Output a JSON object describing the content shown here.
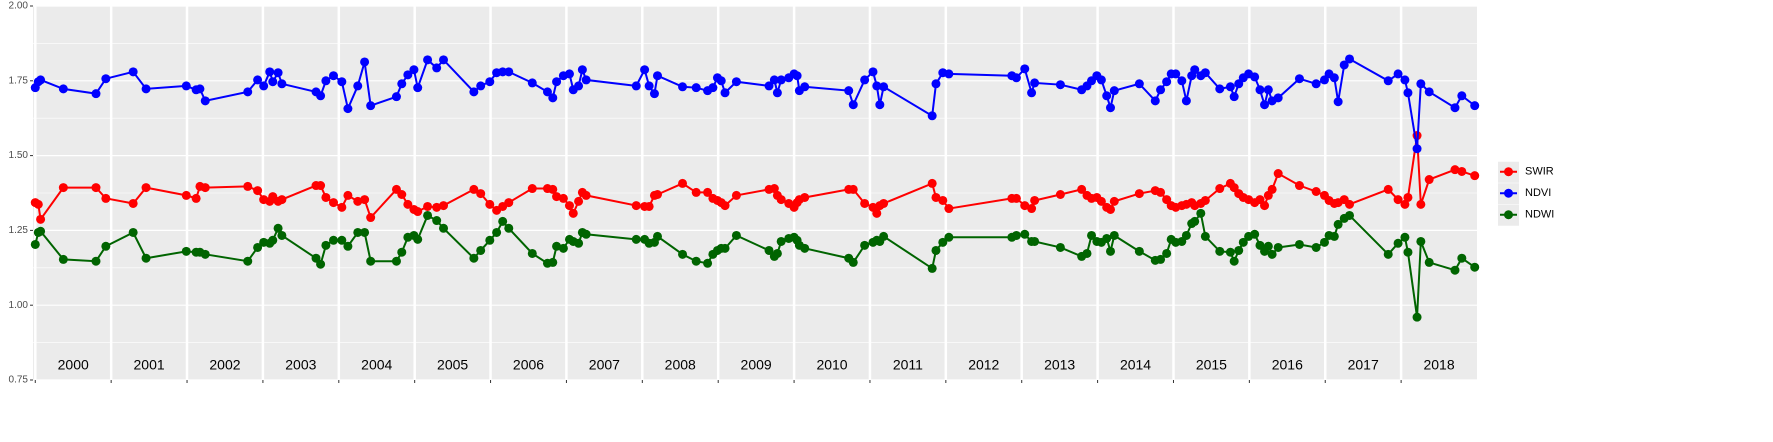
{
  "chart_data": {
    "type": "line",
    "x": [
      2000,
      2000.04,
      2000.07,
      2000.37,
      2000.8,
      2000.93,
      2001.29,
      2001.46,
      2001.99,
      2002.12,
      2002.17,
      2002.24,
      2002.8,
      2002.93,
      2003.01,
      2003.09,
      2003.13,
      2003.2,
      2003.25,
      2003.7,
      2003.76,
      2003.83,
      2003.93,
      2004.04,
      2004.12,
      2004.25,
      2004.34,
      2004.42,
      2004.76,
      2004.83,
      2004.91,
      2004.99,
      2005.04,
      2005.17,
      2005.29,
      2005.38,
      2005.78,
      2005.87,
      2005.99,
      2006.08,
      2006.16,
      2006.24,
      2006.55,
      2006.75,
      2006.82,
      2006.87,
      2006.96,
      2007.04,
      2007.09,
      2007.16,
      2007.21,
      2007.26,
      2007.92,
      2008.03,
      2008.09,
      2008.16,
      2008.2,
      2008.53,
      2008.71,
      2008.86,
      2008.93,
      2008.99,
      2009.04,
      2009.09,
      2009.24,
      2009.67,
      2009.74,
      2009.78,
      2009.83,
      2009.93,
      2010,
      2010.04,
      2010.07,
      2010.14,
      2010.72,
      2010.78,
      2010.93,
      2011.04,
      2011.09,
      2011.13,
      2011.18,
      2011.82,
      2011.87,
      2011.96,
      2012.04,
      2012.87,
      2012.93,
      2013.04,
      2013.13,
      2013.17,
      2013.51,
      2013.79,
      2013.86,
      2013.92,
      2013.99,
      2014.05,
      2014.12,
      2014.17,
      2014.22,
      2014.55,
      2014.76,
      2014.83,
      2014.91,
      2014.97,
      2015.03,
      2015.11,
      2015.17,
      2015.24,
      2015.28,
      2015.36,
      2015.42,
      2015.61,
      2015.75,
      2015.8,
      2015.86,
      2015.92,
      2015.99,
      2016.07,
      2016.14,
      2016.2,
      2016.25,
      2016.3,
      2016.38,
      2016.66,
      2016.88,
      2016.99,
      2017.05,
      2017.12,
      2017.17,
      2017.25,
      2017.32,
      2017.83,
      2017.96,
      2018.05,
      2018.09,
      2018.21,
      2018.26,
      2018.37,
      2018.71,
      2018.8,
      2018.97
    ],
    "series": [
      {
        "name": "SWIR",
        "color": "#ff0000",
        "values": [
          1.343,
          1.337,
          1.287,
          1.393,
          1.393,
          1.357,
          1.34,
          1.393,
          1.367,
          1.357,
          1.397,
          1.393,
          1.397,
          1.383,
          1.353,
          1.347,
          1.363,
          1.347,
          1.353,
          1.4,
          1.4,
          1.36,
          1.343,
          1.327,
          1.367,
          1.347,
          1.353,
          1.293,
          1.387,
          1.37,
          1.337,
          1.32,
          1.313,
          1.33,
          1.327,
          1.333,
          1.387,
          1.373,
          1.337,
          1.317,
          1.33,
          1.343,
          1.39,
          1.39,
          1.387,
          1.363,
          1.357,
          1.333,
          1.307,
          1.347,
          1.377,
          1.367,
          1.333,
          1.33,
          1.33,
          1.367,
          1.37,
          1.407,
          1.377,
          1.377,
          1.357,
          1.35,
          1.343,
          1.333,
          1.367,
          1.387,
          1.39,
          1.367,
          1.353,
          1.34,
          1.327,
          1.343,
          1.353,
          1.36,
          1.387,
          1.387,
          1.34,
          1.327,
          1.307,
          1.333,
          1.34,
          1.407,
          1.36,
          1.35,
          1.323,
          1.357,
          1.357,
          1.333,
          1.323,
          1.35,
          1.37,
          1.387,
          1.367,
          1.357,
          1.36,
          1.347,
          1.327,
          1.32,
          1.347,
          1.373,
          1.383,
          1.377,
          1.353,
          1.333,
          1.327,
          1.333,
          1.337,
          1.343,
          1.333,
          1.34,
          1.35,
          1.39,
          1.407,
          1.393,
          1.373,
          1.36,
          1.353,
          1.343,
          1.353,
          1.333,
          1.367,
          1.387,
          1.44,
          1.4,
          1.38,
          1.367,
          1.35,
          1.34,
          1.343,
          1.353,
          1.337,
          1.387,
          1.353,
          1.337,
          1.36,
          1.567,
          1.337,
          1.42,
          1.453,
          1.447,
          1.433
        ]
      },
      {
        "name": "NDVI",
        "color": "#0000ff",
        "values": [
          1.727,
          1.747,
          1.753,
          1.723,
          1.707,
          1.757,
          1.78,
          1.723,
          1.733,
          1.72,
          1.723,
          1.683,
          1.713,
          1.753,
          1.733,
          1.78,
          1.747,
          1.777,
          1.74,
          1.713,
          1.7,
          1.75,
          1.767,
          1.747,
          1.657,
          1.733,
          1.813,
          1.667,
          1.697,
          1.74,
          1.77,
          1.787,
          1.727,
          1.82,
          1.793,
          1.82,
          1.713,
          1.733,
          1.747,
          1.777,
          1.78,
          1.78,
          1.743,
          1.713,
          1.693,
          1.747,
          1.767,
          1.773,
          1.72,
          1.733,
          1.787,
          1.753,
          1.733,
          1.787,
          1.733,
          1.707,
          1.767,
          1.73,
          1.727,
          1.717,
          1.727,
          1.76,
          1.75,
          1.71,
          1.747,
          1.733,
          1.753,
          1.71,
          1.753,
          1.76,
          1.773,
          1.767,
          1.717,
          1.73,
          1.717,
          1.67,
          1.753,
          1.78,
          1.733,
          1.67,
          1.73,
          1.633,
          1.74,
          1.777,
          1.773,
          1.767,
          1.76,
          1.79,
          1.71,
          1.743,
          1.737,
          1.72,
          1.733,
          1.75,
          1.767,
          1.753,
          1.7,
          1.66,
          1.717,
          1.74,
          1.683,
          1.72,
          1.747,
          1.773,
          1.773,
          1.75,
          1.683,
          1.767,
          1.787,
          1.767,
          1.777,
          1.723,
          1.73,
          1.697,
          1.74,
          1.76,
          1.773,
          1.763,
          1.72,
          1.67,
          1.72,
          1.683,
          1.693,
          1.757,
          1.74,
          1.753,
          1.773,
          1.76,
          1.68,
          1.803,
          1.823,
          1.75,
          1.773,
          1.753,
          1.71,
          1.523,
          1.74,
          1.713,
          1.66,
          1.7,
          1.667
        ]
      },
      {
        "name": "NDWI",
        "color": "#006400",
        "values": [
          1.203,
          1.243,
          1.247,
          1.153,
          1.147,
          1.197,
          1.243,
          1.157,
          1.18,
          1.177,
          1.177,
          1.17,
          1.147,
          1.193,
          1.21,
          1.207,
          1.217,
          1.257,
          1.233,
          1.157,
          1.137,
          1.2,
          1.217,
          1.217,
          1.197,
          1.243,
          1.243,
          1.147,
          1.147,
          1.177,
          1.227,
          1.233,
          1.22,
          1.3,
          1.283,
          1.257,
          1.157,
          1.183,
          1.217,
          1.243,
          1.28,
          1.257,
          1.173,
          1.14,
          1.143,
          1.197,
          1.19,
          1.22,
          1.213,
          1.207,
          1.243,
          1.237,
          1.22,
          1.22,
          1.207,
          1.21,
          1.23,
          1.17,
          1.147,
          1.14,
          1.17,
          1.183,
          1.19,
          1.19,
          1.233,
          1.183,
          1.163,
          1.173,
          1.213,
          1.223,
          1.227,
          1.217,
          1.2,
          1.19,
          1.157,
          1.143,
          1.2,
          1.21,
          1.217,
          1.213,
          1.23,
          1.123,
          1.183,
          1.21,
          1.227,
          1.227,
          1.233,
          1.237,
          1.213,
          1.213,
          1.193,
          1.163,
          1.173,
          1.233,
          1.213,
          1.21,
          1.223,
          1.18,
          1.233,
          1.18,
          1.15,
          1.153,
          1.173,
          1.22,
          1.21,
          1.213,
          1.233,
          1.273,
          1.28,
          1.307,
          1.23,
          1.18,
          1.177,
          1.147,
          1.183,
          1.21,
          1.23,
          1.237,
          1.2,
          1.18,
          1.197,
          1.17,
          1.193,
          1.203,
          1.193,
          1.21,
          1.233,
          1.23,
          1.27,
          1.29,
          1.3,
          1.17,
          1.207,
          1.227,
          1.177,
          0.96,
          1.213,
          1.143,
          1.117,
          1.157,
          1.127
        ]
      }
    ],
    "xlim": [
      1999.97,
      2019.0
    ],
    "xticks": [
      2000,
      2001,
      2002,
      2003,
      2004,
      2005,
      2006,
      2007,
      2008,
      2009,
      2010,
      2011,
      2012,
      2013,
      2014,
      2015,
      2016,
      2017,
      2018
    ],
    "annotations": [
      "2000",
      "2001",
      "2002",
      "2003",
      "2004",
      "2005",
      "2006",
      "2007",
      "2008",
      "2009",
      "2010",
      "2011",
      "2012",
      "2013",
      "2014",
      "2015",
      "2016",
      "2017",
      "2018"
    ],
    "ylim": [
      0.75,
      2.0
    ],
    "yticks": [
      0.75,
      {
        "value": 1.0,
        "label": "1.00"
      },
      1.25,
      {
        "value": 1.5,
        "label": "1.50"
      },
      1.75,
      {
        "value": 2.0,
        "label": "2.00"
      }
    ],
    "grid": true,
    "legend": "right"
  }
}
